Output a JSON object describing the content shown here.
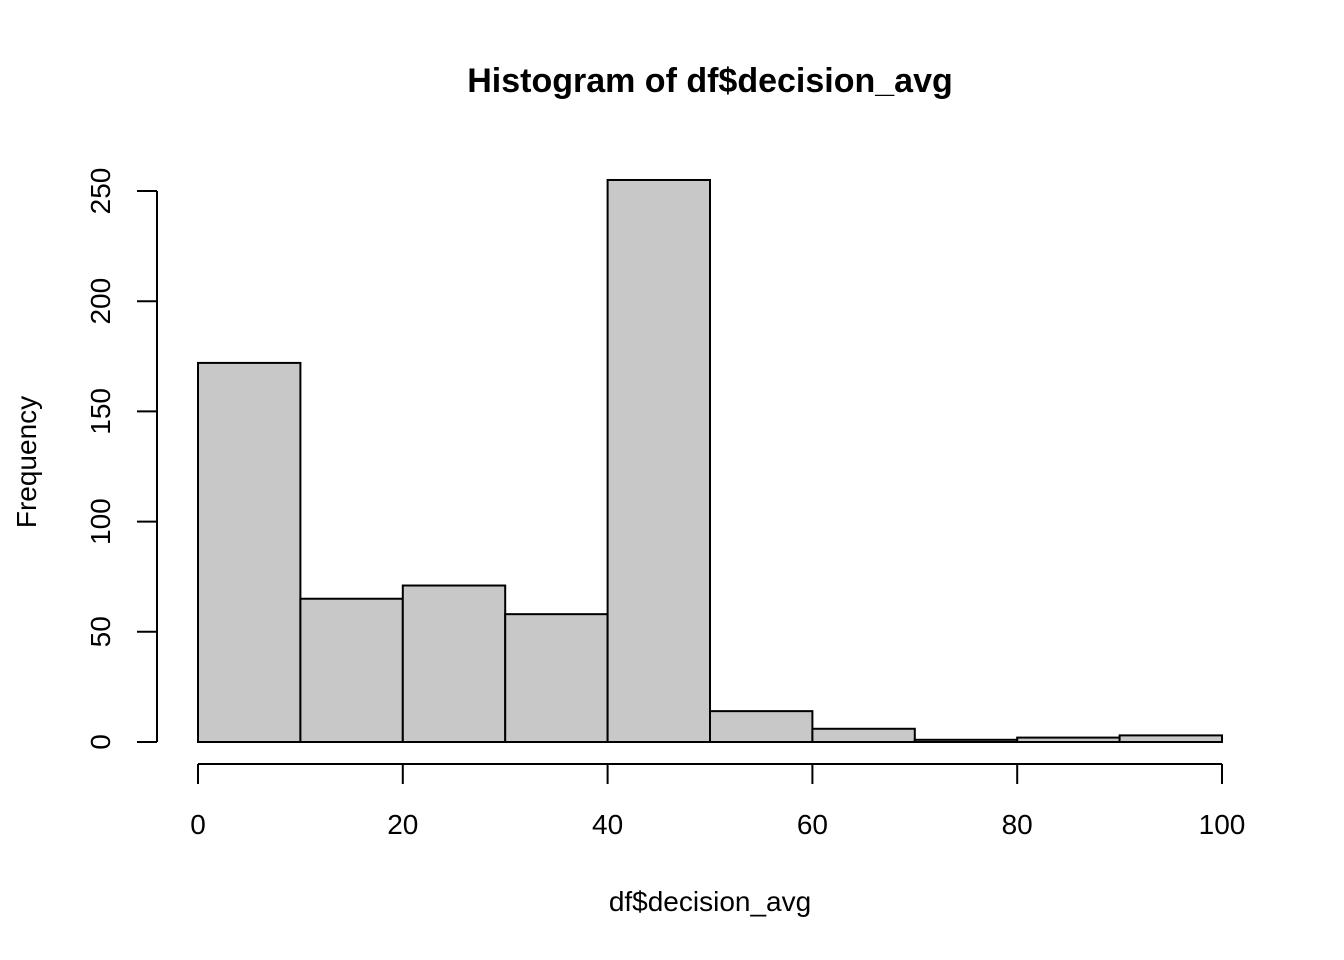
{
  "chart_data": {
    "type": "bar",
    "title": "Histogram of df$decision_avg",
    "xlabel": "df$decision_avg",
    "ylabel": "Frequency",
    "bins": [
      {
        "from": 0,
        "to": 10,
        "count": 172
      },
      {
        "from": 10,
        "to": 20,
        "count": 65
      },
      {
        "from": 20,
        "to": 30,
        "count": 71
      },
      {
        "from": 30,
        "to": 40,
        "count": 58
      },
      {
        "from": 40,
        "to": 50,
        "count": 255
      },
      {
        "from": 50,
        "to": 60,
        "count": 14
      },
      {
        "from": 60,
        "to": 70,
        "count": 6
      },
      {
        "from": 70,
        "to": 80,
        "count": 1
      },
      {
        "from": 80,
        "to": 90,
        "count": 2
      },
      {
        "from": 90,
        "to": 100,
        "count": 3
      }
    ],
    "xlim": [
      0,
      100
    ],
    "ylim": [
      0,
      250
    ],
    "x_ticks": [
      "0",
      "20",
      "40",
      "60",
      "80",
      "100"
    ],
    "y_ticks": [
      "0",
      "50",
      "100",
      "150",
      "200",
      "250"
    ],
    "grid": false,
    "bar_color": "#c8c8c8",
    "border_color": "#000000"
  }
}
